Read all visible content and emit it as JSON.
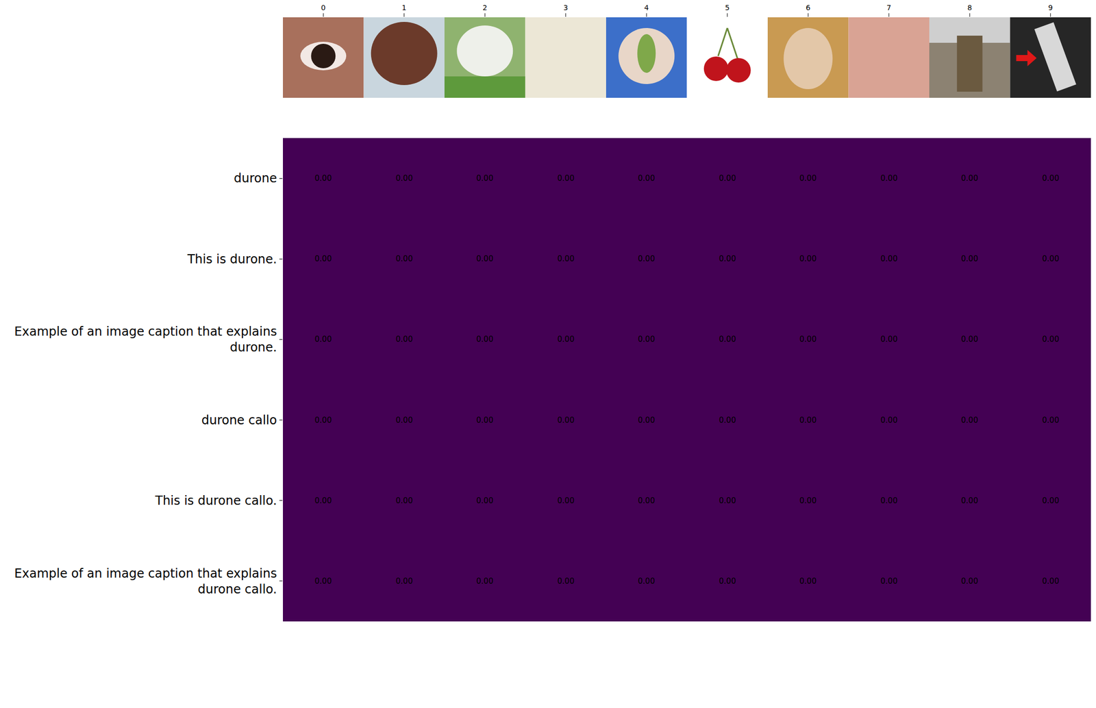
{
  "chart_data": {
    "type": "heatmap",
    "columns": [
      0,
      1,
      2,
      3,
      4,
      5,
      6,
      7,
      8,
      9
    ],
    "rows": [
      "durone",
      "This is durone.",
      "Example of an image caption that explains durone.",
      "durone callo",
      "This is durone callo.",
      "Example of an image caption that explains durone callo."
    ],
    "cells": [
      [
        0,
        0,
        0,
        0,
        0,
        0,
        0,
        0,
        0,
        0
      ],
      [
        0,
        0,
        0,
        0,
        0,
        0,
        0,
        0,
        0,
        0
      ],
      [
        0,
        0,
        0,
        0,
        0,
        0,
        0,
        0,
        0,
        0
      ],
      [
        0,
        0,
        0,
        0,
        0,
        0,
        0,
        0,
        0,
        0
      ],
      [
        0,
        0,
        0,
        0,
        0,
        0,
        0,
        0,
        0,
        0
      ],
      [
        0,
        0,
        0,
        0,
        0,
        0,
        0,
        0,
        0,
        0
      ]
    ],
    "value_labels": [
      [
        "0.00",
        "0.00",
        "0.00",
        "0.00",
        "0.00",
        "0.00",
        "0.00",
        "0.00",
        "0.00",
        "0.00"
      ],
      [
        "0.00",
        "0.00",
        "0.00",
        "0.00",
        "0.00",
        "0.00",
        "0.00",
        "0.00",
        "0.00",
        "0.00"
      ],
      [
        "0.00",
        "0.00",
        "0.00",
        "0.00",
        "0.00",
        "0.00",
        "0.00",
        "0.00",
        "0.00",
        "0.00"
      ],
      [
        "0.00",
        "0.00",
        "0.00",
        "0.00",
        "0.00",
        "0.00",
        "0.00",
        "0.00",
        "0.00",
        "0.00"
      ],
      [
        "0.00",
        "0.00",
        "0.00",
        "0.00",
        "0.00",
        "0.00",
        "0.00",
        "0.00",
        "0.00",
        "0.00"
      ],
      [
        "0.00",
        "0.00",
        "0.00",
        "0.00",
        "0.00",
        "0.00",
        "0.00",
        "0.00",
        "0.00",
        "0.00"
      ]
    ],
    "data_labels": true,
    "color": "#440154"
  }
}
